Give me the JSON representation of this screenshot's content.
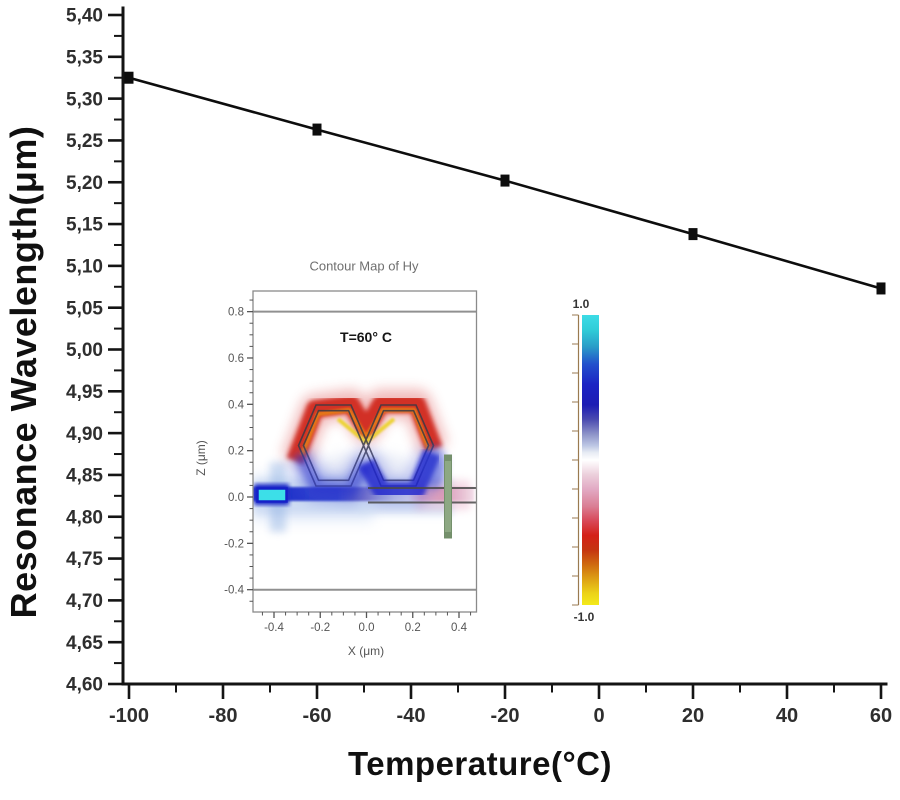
{
  "page": {
    "background": "#ffffff"
  },
  "chart_data": [
    {
      "type": "line",
      "role": "main",
      "title": "",
      "xlabel": "Temperature(°C)",
      "ylabel": "Resonance Wavelength(μm)",
      "x": [
        -100,
        -60,
        -20,
        20,
        60
      ],
      "y": [
        5.325,
        5.263,
        5.202,
        5.138,
        5.073
      ],
      "xlim": [
        -100,
        60
      ],
      "ylim": [
        4.6,
        5.4
      ],
      "x_major_ticks": [
        -100,
        -80,
        -60,
        -40,
        -20,
        0,
        20,
        40,
        60
      ],
      "x_tick_labels": [
        "-100",
        "-80",
        "-60",
        "-40",
        "-20",
        "0",
        "20",
        "40",
        "60"
      ],
      "x_minor_step": 10,
      "y_major_step": 0.05,
      "y_minor_step": 0.025,
      "y_tick_labels": [
        "5,40",
        "5,35",
        "5,30",
        "5,25",
        "5,20",
        "5,15",
        "5,10",
        "5,05",
        "5,00",
        "4,95",
        "4,90",
        "4,85",
        "4,80",
        "4,75",
        "4,70",
        "4,65",
        "4,60"
      ],
      "decimal_separator": ",",
      "line_color": "#0d0d0d",
      "marker": "square",
      "grid": false,
      "legend": null
    },
    {
      "type": "heatmap",
      "role": "inset",
      "title": "Contour Map of Hy",
      "annotation": "T=60° C",
      "xlabel": "X (μm)",
      "ylabel": "Z (μm)",
      "xlim": [
        -0.49,
        0.47
      ],
      "zlim": [
        -0.49,
        0.89
      ],
      "x_major_ticks": [
        -0.4,
        -0.2,
        0.0,
        0.2,
        0.4
      ],
      "x_tick_labels": [
        "-0.4",
        "-0.2",
        "0.0",
        "0.2",
        "0.4"
      ],
      "z_major_ticks": [
        0.8,
        0.6,
        0.4,
        0.2,
        0.0,
        -0.2,
        -0.4
      ],
      "z_tick_labels": [
        "0.8",
        "0.6",
        "0.4",
        "0.2",
        "0.0",
        "-0.2",
        "-0.4"
      ],
      "minor_step": 0.05,
      "structure_lines_z": [
        0.8,
        -0.4
      ],
      "waveguide_lines_z": [
        0.035,
        -0.03
      ],
      "colorbar": {
        "max_label": "1.0",
        "min_label": "-1.0",
        "range": [
          1.0,
          -1.0
        ],
        "colors_top_to_bottom": [
          "#3ddce6",
          "#2250cc",
          "#1c24c4",
          "#8c92c8",
          "#ffffff",
          "#e2aac4",
          "#d42018",
          "#cf6a10",
          "#f3ea1a"
        ]
      }
    }
  ]
}
